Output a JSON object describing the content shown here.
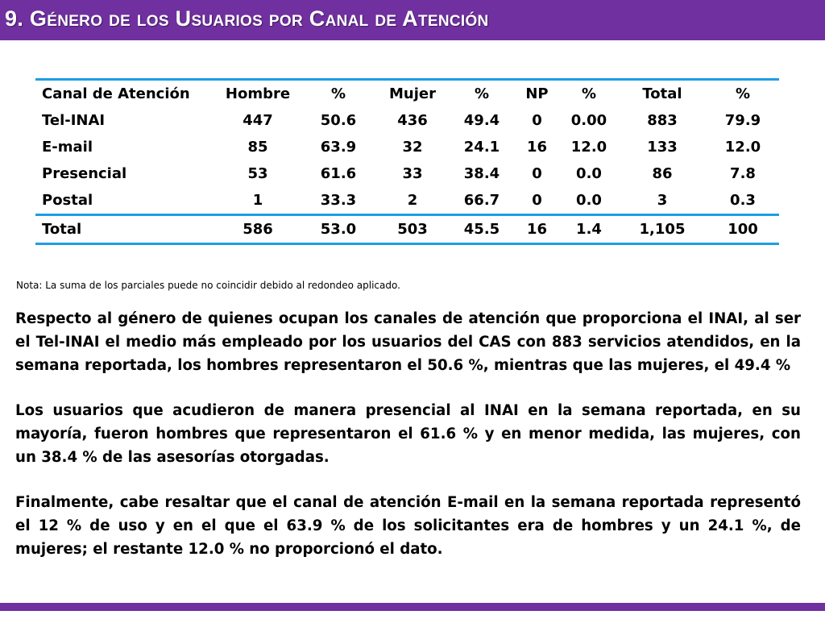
{
  "slide": {
    "title": "9. Género de los Usuarios por Canal de Atención",
    "accent_color": "#7030a0",
    "rule_color": "#1e9de6"
  },
  "table": {
    "headers": [
      "Canal de Atención",
      "Hombre",
      "%",
      "Mujer",
      "%",
      "NP",
      "%",
      "Total",
      "%"
    ],
    "rows": [
      [
        "Tel-INAI",
        "447",
        "50.6",
        "436",
        "49.4",
        "0",
        "0.00",
        "883",
        "79.9"
      ],
      [
        "E-mail",
        "85",
        "63.9",
        "32",
        "24.1",
        "16",
        "12.0",
        "133",
        "12.0"
      ],
      [
        "Presencial",
        "53",
        "61.6",
        "33",
        "38.4",
        "0",
        "0.0",
        "86",
        "7.8"
      ],
      [
        "Postal",
        "1",
        "33.3",
        "2",
        "66.7",
        "0",
        "0.0",
        "3",
        "0.3"
      ]
    ],
    "total_row": [
      "Total",
      "586",
      "53.0",
      "503",
      "45.5",
      "16",
      "1.4",
      "1,105",
      "100"
    ]
  },
  "note": "Nota: La suma de los parciales puede no coincidir debido al redondeo aplicado.",
  "paragraphs": [
    "Respecto al género de quienes ocupan los canales de atención que proporciona el INAI, al ser el Tel-INAI el medio más empleado por los usuarios del CAS con 883 servicios atendidos, en la semana reportada, los hombres representaron el 50.6 %, mientras que las mujeres, el 49.4 %",
    "Los usuarios que acudieron de manera presencial al INAI en la semana reportada, en su mayoría, fueron hombres que representaron el 61.6 % y en menor medida, las mujeres, con un 38.4 % de las asesorías otorgadas.",
    "Finalmente, cabe resaltar que el canal de atención E-mail en la semana reportada representó el 12 % de uso y en el que el 63.9 % de los solicitantes era de hombres y un 24.1 %, de mujeres; el restante 12.0 % no proporcionó el dato."
  ]
}
